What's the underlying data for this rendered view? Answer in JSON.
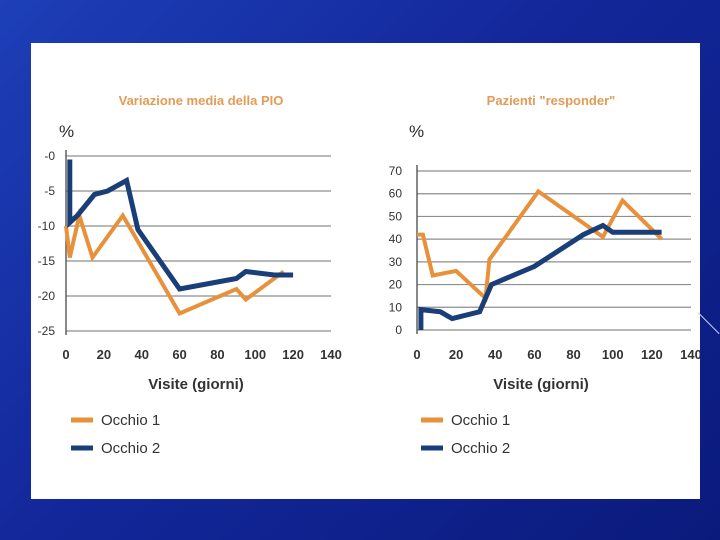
{
  "chart_data": [
    {
      "type": "line",
      "title": "Variazione media della PIO",
      "ylabel": "%",
      "xlabel": "Visite (giorni)",
      "xlim": [
        0,
        140
      ],
      "ylim": [
        -25,
        0
      ],
      "x_ticks": [
        0,
        20,
        40,
        60,
        80,
        100,
        120,
        140
      ],
      "y_ticks": [
        0,
        -5,
        -10,
        -15,
        -20,
        -25
      ],
      "y_tick_labels": [
        "-0",
        "-5",
        "-10",
        "-15",
        "-20",
        "-25"
      ],
      "grid": true,
      "series": [
        {
          "name": "Occhio 1",
          "color": "#e8913a",
          "points": [
            [
              0,
              -10
            ],
            [
              2,
              -14.5
            ],
            [
              7,
              -8.5
            ],
            [
              14,
              -14.5
            ],
            [
              30,
              -8.5
            ],
            [
              60,
              -22.5
            ],
            [
              90,
              -19
            ],
            [
              95,
              -20.5
            ],
            [
              115,
              -16.5
            ]
          ]
        },
        {
          "name": "Occhio 2",
          "color": "#1a3e78",
          "points": [
            [
              2,
              -0.5
            ],
            [
              2,
              -9.5
            ],
            [
              6,
              -8.5
            ],
            [
              15,
              -5.5
            ],
            [
              22,
              -5
            ],
            [
              32,
              -3.5
            ],
            [
              38,
              -10.5
            ],
            [
              60,
              -19
            ],
            [
              90,
              -17.5
            ],
            [
              95,
              -16.5
            ],
            [
              110,
              -17
            ],
            [
              120,
              -17
            ]
          ]
        }
      ],
      "legend": [
        "Occhio 1",
        "Occhio 2"
      ]
    },
    {
      "type": "line",
      "title": "Pazienti \"responder\"",
      "ylabel": "%",
      "xlabel": "Visite (giorni)",
      "xlim": [
        0,
        140
      ],
      "ylim": [
        0,
        70
      ],
      "x_ticks": [
        0,
        20,
        40,
        60,
        80,
        100,
        120,
        140
      ],
      "y_ticks": [
        0,
        10,
        20,
        30,
        40,
        50,
        60,
        70
      ],
      "y_tick_labels": [
        "0",
        "10",
        "20",
        "30",
        "40",
        "50",
        "60",
        "70"
      ],
      "grid": true,
      "series": [
        {
          "name": "Occhio 1",
          "color": "#e8913a",
          "points": [
            [
              0,
              42
            ],
            [
              3,
              42
            ],
            [
              8,
              24
            ],
            [
              20,
              26
            ],
            [
              35,
              14
            ],
            [
              37,
              31
            ],
            [
              62,
              61
            ],
            [
              95,
              41
            ],
            [
              105,
              57
            ],
            [
              125,
              40
            ]
          ]
        },
        {
          "name": "Occhio 2",
          "color": "#1a3e78",
          "points": [
            [
              2,
              0
            ],
            [
              2,
              9
            ],
            [
              12,
              8
            ],
            [
              18,
              5
            ],
            [
              32,
              8
            ],
            [
              38,
              20
            ],
            [
              60,
              28
            ],
            [
              85,
              42
            ],
            [
              95,
              46
            ],
            [
              100,
              43
            ],
            [
              125,
              43
            ]
          ]
        }
      ],
      "legend": [
        "Occhio 1",
        "Occhio 2"
      ]
    }
  ]
}
